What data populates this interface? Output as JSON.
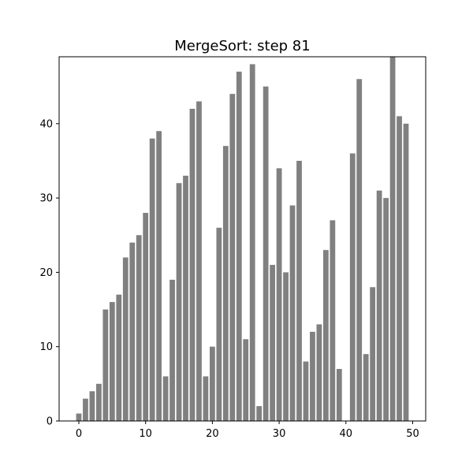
{
  "chart_data": {
    "type": "bar",
    "title": "MergeSort: step 81",
    "xlabel": "",
    "ylabel": "",
    "bar_color": "#808080",
    "x": [
      0,
      1,
      2,
      3,
      4,
      5,
      6,
      7,
      8,
      9,
      10,
      11,
      12,
      13,
      14,
      15,
      16,
      17,
      18,
      19,
      20,
      21,
      22,
      23,
      24,
      25,
      26,
      27,
      28,
      29,
      30,
      31,
      32,
      33,
      34,
      35,
      36,
      37,
      38,
      39,
      40,
      41,
      42,
      43,
      44,
      45,
      46,
      47,
      48,
      49
    ],
    "values": [
      1,
      3,
      4,
      5,
      15,
      16,
      17,
      22,
      24,
      25,
      28,
      38,
      39,
      6,
      19,
      32,
      33,
      42,
      43,
      6,
      10,
      26,
      37,
      44,
      47,
      11,
      48,
      2,
      45,
      21,
      34,
      20,
      29,
      35,
      8,
      12,
      13,
      23,
      27,
      7,
      0,
      36,
      46,
      9,
      18,
      31,
      30,
      49,
      41,
      40
    ],
    "xlim": [
      -2.95,
      51.95
    ],
    "ylim": [
      0,
      49
    ],
    "xticks": [
      0,
      10,
      20,
      30,
      40,
      50
    ],
    "yticks": [
      0,
      10,
      20,
      30,
      40
    ],
    "grid": false
  }
}
